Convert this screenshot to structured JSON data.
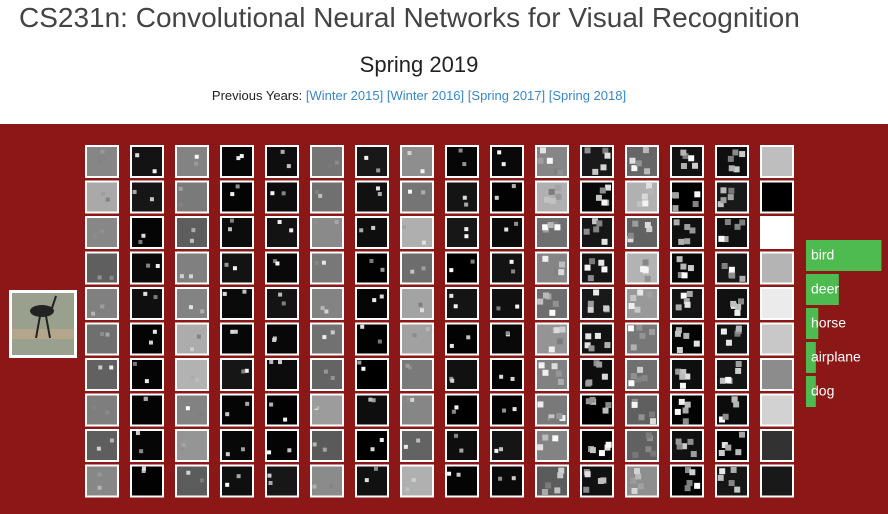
{
  "header": {
    "title": "CS231n: Convolutional Neural Networks for Visual Recognition",
    "subtitle": "Spring 2019",
    "previous_label": "Previous Years:",
    "previous_links": [
      "[Winter 2015]",
      "[Winter 2016]",
      "[Spring 2017]",
      "[Spring 2018]"
    ]
  },
  "predictions": [
    {
      "label": "bird",
      "score": 0.92
    },
    {
      "label": "deer",
      "score": 0.4
    },
    {
      "label": "horse",
      "score": 0.15
    },
    {
      "label": "airplane",
      "score": 0.12
    },
    {
      "label": "dog",
      "score": 0.12
    }
  ]
}
